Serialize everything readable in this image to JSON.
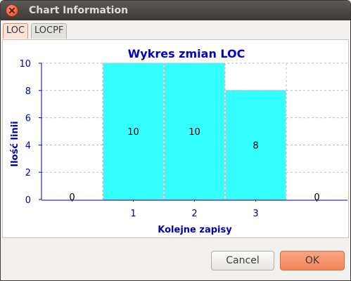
{
  "window": {
    "title": "Chart Information"
  },
  "tabs": [
    {
      "label": "LOC",
      "active": true
    },
    {
      "label": "LOCPF",
      "active": false
    }
  ],
  "buttons": {
    "cancel": "Cancel",
    "ok": "OK"
  },
  "colors": {
    "bar_fill": "#33ffff",
    "axis_text": "#0000aa",
    "title_text": "#0000cc"
  },
  "chart_data": {
    "type": "bar",
    "title": "Wykres zmian LOC",
    "xlabel": "Kolejne zapisy",
    "ylabel": "Ilość linii",
    "categories": [
      "",
      "1",
      "2",
      "3",
      ""
    ],
    "values": [
      0,
      10,
      10,
      8,
      0
    ],
    "data_labels": [
      "0",
      "10",
      "10",
      "8",
      "0"
    ],
    "ylim": [
      0,
      10
    ],
    "yticks": [
      "0",
      "2",
      "4",
      "6",
      "8",
      "10"
    ],
    "grid": true,
    "legend": "none"
  }
}
